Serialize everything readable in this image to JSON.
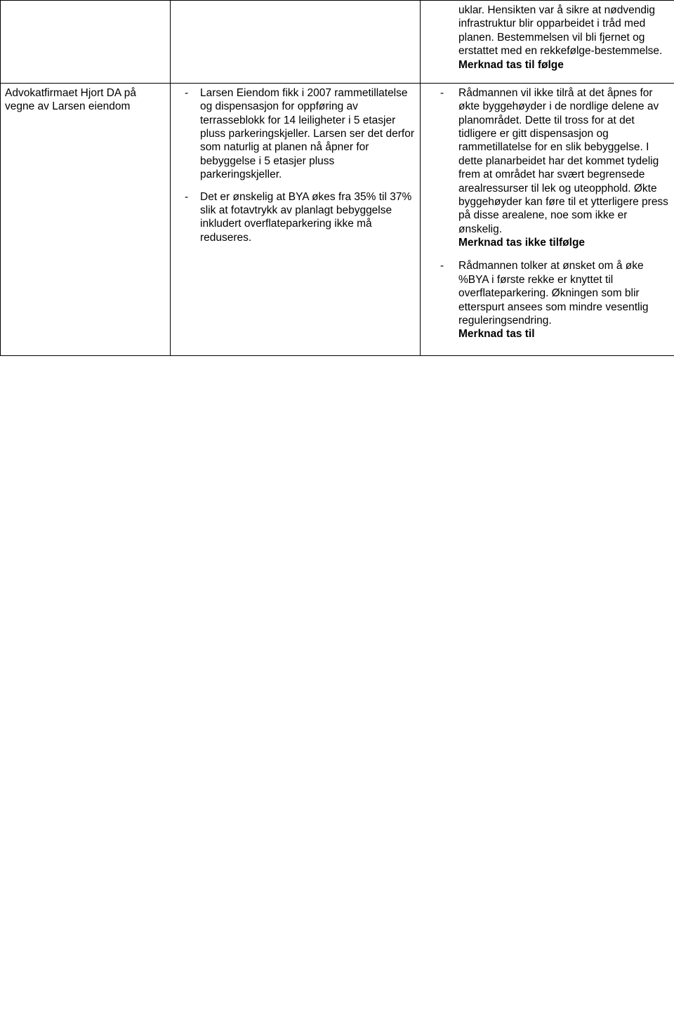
{
  "row1": {
    "col3": {
      "para1": "uklar. Hensikten var å sikre at nødvendig infrastruktur blir opparbeidet i tråd med planen. Bestemmelsen vil bli fjernet og erstattet med en rekkefølge-bestemmelse.",
      "bold1": "Merknad tas til følge"
    }
  },
  "row2": {
    "col1": "Advokatfirmaet Hjort DA på vegne av Larsen eiendom",
    "col2": {
      "item1": "Larsen Eiendom fikk i 2007 rammetillatelse og dispensasjon for oppføring av terrasseblokk for 14 leiligheter i 5 etasjer pluss parkeringskjeller. Larsen ser det derfor som naturlig at planen nå åpner for bebyggelse i 5 etasjer pluss parkeringskjeller.",
      "item2": "Det er ønskelig at BYA økes fra 35% til 37% slik at fotavtrykk av planlagt bebyggelse inkludert overflateparkering ikke må reduseres."
    },
    "col3": {
      "item1_text": "Rådmannen vil ikke tilrå at det åpnes for økte byggehøyder i de nordlige delene av planområdet. Dette til tross for at det tidligere er gitt dispensasjon og rammetillatelse for en slik bebyggelse. I dette planarbeidet har det kommet tydelig frem at området har svært begrensede arealressurser til lek og uteopphold. Økte byggehøyder kan føre til et ytterligere press på disse arealene, noe som ikke er ønskelig.",
      "item1_bold": "Merknad tas ikke tilfølge",
      "item2_text": "Rådmannen tolker at ønsket om å øke %BYA i første rekke er knyttet til overflateparkering. Økningen som blir etterspurt ansees som mindre vesentlig reguleringsendring.",
      "item2_bold": "Merknad tas til"
    }
  }
}
